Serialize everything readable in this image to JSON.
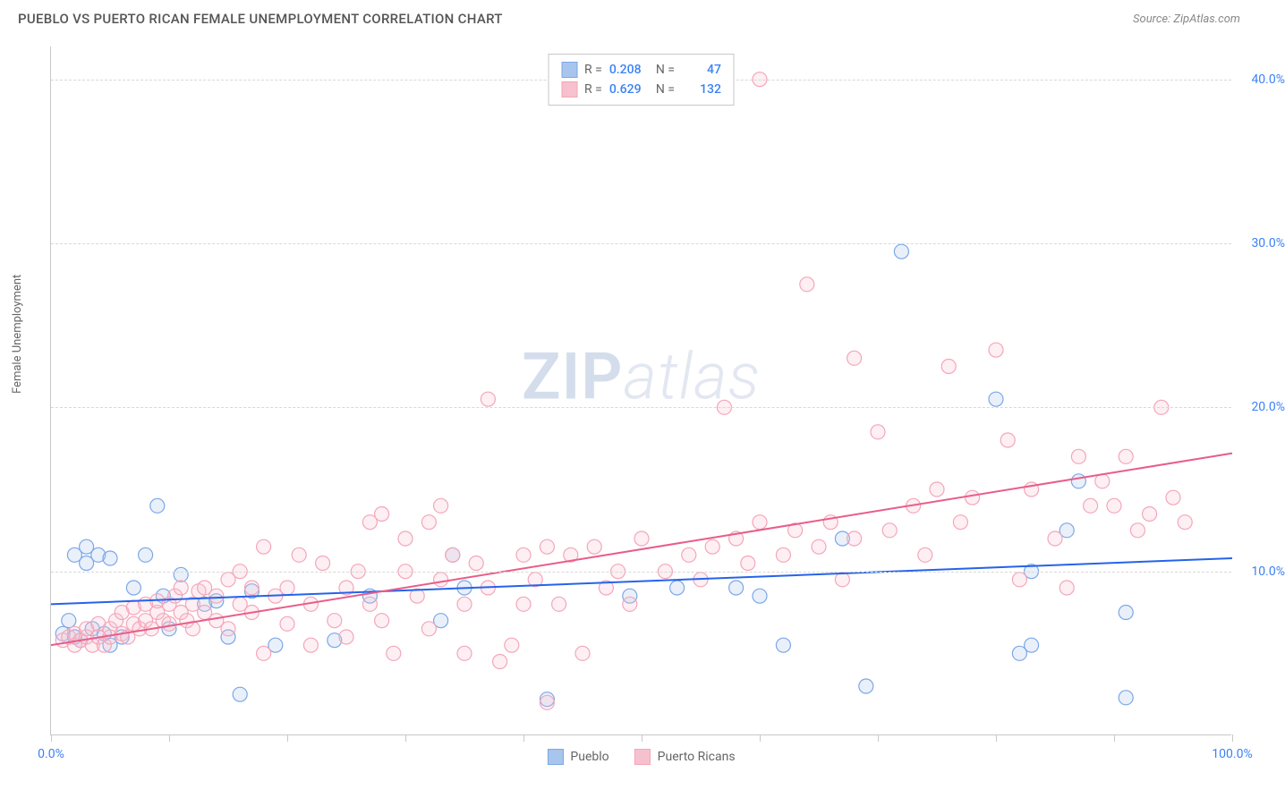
{
  "title": "PUEBLO VS PUERTO RICAN FEMALE UNEMPLOYMENT CORRELATION CHART",
  "source_text": "Source: ZipAtlas.com",
  "y_axis_label": "Female Unemployment",
  "watermark_bold": "ZIP",
  "watermark_light": "atlas",
  "chart": {
    "type": "scatter-correlation",
    "xlim": [
      0,
      100
    ],
    "ylim": [
      0,
      42
    ],
    "x_ticks": [
      0,
      10,
      20,
      30,
      40,
      50,
      60,
      70,
      80,
      90,
      100
    ],
    "x_tick_labels": {
      "0": "0.0%",
      "100": "100.0%"
    },
    "y_grid": [
      10,
      20,
      30,
      40
    ],
    "y_tick_labels": {
      "10": "10.0%",
      "20": "20.0%",
      "30": "30.0%",
      "40": "40.0%"
    },
    "background_color": "#ffffff",
    "grid_color": "#d8d8d8",
    "axis_color": "#c8c8c8",
    "tick_label_color": "#3b82f6",
    "marker_radius": 8,
    "marker_stroke_width": 1.2,
    "marker_fill_opacity": 0.25,
    "line_width": 2,
    "series": [
      {
        "name": "Pueblo",
        "color": "#7ba7e8",
        "fill_color": "#a8c5ed",
        "line_color": "#2563eb",
        "R": "0.208",
        "N": "47",
        "regression": {
          "x1": 0,
          "y1": 8.0,
          "x2": 100,
          "y2": 10.8
        },
        "points": [
          [
            1,
            6.2
          ],
          [
            1.5,
            7
          ],
          [
            2,
            6
          ],
          [
            2,
            11
          ],
          [
            2.5,
            5.8
          ],
          [
            3,
            10.5
          ],
          [
            3,
            11.5
          ],
          [
            3.5,
            6.5
          ],
          [
            4,
            11
          ],
          [
            4.5,
            6.2
          ],
          [
            5,
            10.8
          ],
          [
            5,
            5.5
          ],
          [
            6,
            6
          ],
          [
            7,
            9
          ],
          [
            8,
            11
          ],
          [
            9,
            14
          ],
          [
            9.5,
            8.5
          ],
          [
            10,
            6.5
          ],
          [
            11,
            9.8
          ],
          [
            13,
            8
          ],
          [
            14,
            8.2
          ],
          [
            15,
            6
          ],
          [
            16,
            2.5
          ],
          [
            17,
            8.8
          ],
          [
            19,
            5.5
          ],
          [
            24,
            5.8
          ],
          [
            27,
            8.5
          ],
          [
            33,
            7
          ],
          [
            34,
            11
          ],
          [
            35,
            9
          ],
          [
            42,
            2.2
          ],
          [
            49,
            8.5
          ],
          [
            53,
            9
          ],
          [
            58,
            9
          ],
          [
            60,
            8.5
          ],
          [
            62,
            5.5
          ],
          [
            67,
            12
          ],
          [
            69,
            3
          ],
          [
            72,
            29.5
          ],
          [
            80,
            20.5
          ],
          [
            82,
            5
          ],
          [
            83,
            10
          ],
          [
            83,
            5.5
          ],
          [
            86,
            12.5
          ],
          [
            87,
            15.5
          ],
          [
            91,
            2.3
          ],
          [
            91,
            7.5
          ]
        ]
      },
      {
        "name": "Puerto Ricans",
        "color": "#f4a6b8",
        "fill_color": "#f7c0ce",
        "line_color": "#e85d8a",
        "R": "0.629",
        "N": "132",
        "regression": {
          "x1": 0,
          "y1": 5.5,
          "x2": 100,
          "y2": 17.2
        },
        "points": [
          [
            1,
            5.8
          ],
          [
            1.5,
            6
          ],
          [
            2,
            5.5
          ],
          [
            2,
            6.2
          ],
          [
            2.5,
            5.8
          ],
          [
            3,
            6
          ],
          [
            3,
            6.5
          ],
          [
            3.5,
            5.5
          ],
          [
            4,
            6.8
          ],
          [
            4,
            6
          ],
          [
            4.5,
            5.5
          ],
          [
            5,
            6
          ],
          [
            5,
            6.5
          ],
          [
            5.5,
            7
          ],
          [
            6,
            6.2
          ],
          [
            6,
            7.5
          ],
          [
            6.5,
            6
          ],
          [
            7,
            6.8
          ],
          [
            7,
            7.8
          ],
          [
            7.5,
            6.5
          ],
          [
            8,
            7
          ],
          [
            8,
            8
          ],
          [
            8.5,
            6.5
          ],
          [
            9,
            7.5
          ],
          [
            9,
            8.2
          ],
          [
            9.5,
            7
          ],
          [
            10,
            8
          ],
          [
            10,
            6.8
          ],
          [
            10.5,
            8.5
          ],
          [
            11,
            7.5
          ],
          [
            11,
            9
          ],
          [
            11.5,
            7
          ],
          [
            12,
            8
          ],
          [
            12,
            6.5
          ],
          [
            12.5,
            8.8
          ],
          [
            13,
            7.5
          ],
          [
            13,
            9
          ],
          [
            14,
            8.5
          ],
          [
            14,
            7
          ],
          [
            15,
            9.5
          ],
          [
            15,
            6.5
          ],
          [
            16,
            8
          ],
          [
            16,
            10
          ],
          [
            17,
            7.5
          ],
          [
            17,
            9
          ],
          [
            18,
            11.5
          ],
          [
            18,
            5
          ],
          [
            19,
            8.5
          ],
          [
            20,
            9
          ],
          [
            20,
            6.8
          ],
          [
            21,
            11
          ],
          [
            22,
            8
          ],
          [
            22,
            5.5
          ],
          [
            23,
            10.5
          ],
          [
            24,
            7
          ],
          [
            25,
            9
          ],
          [
            25,
            6
          ],
          [
            26,
            10
          ],
          [
            27,
            13
          ],
          [
            27,
            8
          ],
          [
            28,
            13.5
          ],
          [
            28,
            7
          ],
          [
            29,
            5
          ],
          [
            30,
            10
          ],
          [
            30,
            12
          ],
          [
            31,
            8.5
          ],
          [
            32,
            13
          ],
          [
            32,
            6.5
          ],
          [
            33,
            9.5
          ],
          [
            33,
            14
          ],
          [
            34,
            11
          ],
          [
            35,
            8
          ],
          [
            35,
            5
          ],
          [
            36,
            10.5
          ],
          [
            37,
            9
          ],
          [
            37,
            20.5
          ],
          [
            38,
            4.5
          ],
          [
            39,
            5.5
          ],
          [
            40,
            11
          ],
          [
            40,
            8
          ],
          [
            41,
            9.5
          ],
          [
            42,
            11.5
          ],
          [
            42,
            2
          ],
          [
            43,
            8
          ],
          [
            44,
            11
          ],
          [
            45,
            5
          ],
          [
            46,
            11.5
          ],
          [
            47,
            9
          ],
          [
            48,
            10
          ],
          [
            49,
            8
          ],
          [
            50,
            12
          ],
          [
            52,
            10
          ],
          [
            54,
            11
          ],
          [
            55,
            9.5
          ],
          [
            56,
            11.5
          ],
          [
            57,
            20
          ],
          [
            58,
            12
          ],
          [
            59,
            10.5
          ],
          [
            60,
            13
          ],
          [
            60,
            40
          ],
          [
            62,
            11
          ],
          [
            63,
            12.5
          ],
          [
            64,
            27.5
          ],
          [
            65,
            11.5
          ],
          [
            66,
            13
          ],
          [
            67,
            9.5
          ],
          [
            68,
            23
          ],
          [
            68,
            12
          ],
          [
            70,
            18.5
          ],
          [
            71,
            12.5
          ],
          [
            73,
            14
          ],
          [
            74,
            11
          ],
          [
            75,
            15
          ],
          [
            76,
            22.5
          ],
          [
            77,
            13
          ],
          [
            78,
            14.5
          ],
          [
            80,
            23.5
          ],
          [
            81,
            18
          ],
          [
            82,
            9.5
          ],
          [
            83,
            15
          ],
          [
            85,
            12
          ],
          [
            86,
            9
          ],
          [
            87,
            17
          ],
          [
            88,
            14
          ],
          [
            89,
            15.5
          ],
          [
            90,
            14
          ],
          [
            91,
            17
          ],
          [
            92,
            12.5
          ],
          [
            93,
            13.5
          ],
          [
            94,
            20
          ],
          [
            95,
            14.5
          ],
          [
            96,
            13
          ]
        ]
      }
    ]
  },
  "legend_bottom": [
    {
      "label": "Pueblo",
      "swatch_fill": "#a8c5ed",
      "swatch_border": "#7ba7e8"
    },
    {
      "label": "Puerto Ricans",
      "swatch_fill": "#f7c0ce",
      "swatch_border": "#f4a6b8"
    }
  ]
}
